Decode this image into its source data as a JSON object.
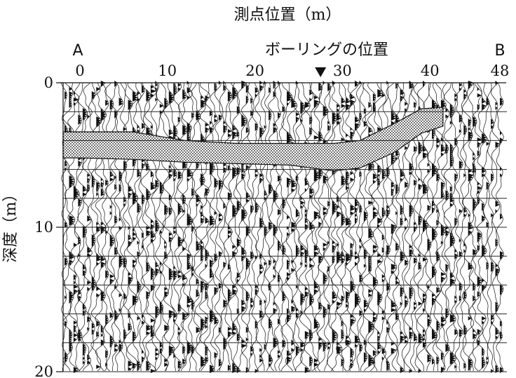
{
  "chart_data": {
    "type": "seismic-section",
    "title": "測点位置（m）",
    "ylabel": "深度（m）",
    "annotation": "ボーリングの位置",
    "end_labels": {
      "left": "A",
      "right": "B"
    },
    "x_ticks": [
      "0",
      "10",
      "20",
      "30",
      "40",
      "48"
    ],
    "x_tick_values": [
      0,
      10,
      20,
      30,
      40,
      48
    ],
    "y_ticks": [
      "0",
      "10",
      "20"
    ],
    "y_tick_values": [
      0,
      10,
      20
    ],
    "xlim": [
      0,
      48
    ],
    "ylim": [
      0,
      20
    ],
    "y_inverted": true,
    "borehole_position": 27.5,
    "shaded_reflector": [
      {
        "x": 0,
        "top": 3.4,
        "bottom": 5.2
      },
      {
        "x": 6,
        "top": 3.4,
        "bottom": 5.3
      },
      {
        "x": 12,
        "top": 4.0,
        "bottom": 5.5
      },
      {
        "x": 18,
        "top": 4.2,
        "bottom": 5.6
      },
      {
        "x": 24,
        "top": 4.2,
        "bottom": 5.7
      },
      {
        "x": 29,
        "top": 4.2,
        "bottom": 6.1
      },
      {
        "x": 32,
        "top": 4.0,
        "bottom": 5.9
      },
      {
        "x": 36,
        "top": 2.8,
        "bottom": 4.8
      },
      {
        "x": 39,
        "top": 1.8,
        "bottom": 3.5
      },
      {
        "x": 41.5,
        "top": 1.7,
        "bottom": 3.0
      }
    ],
    "colors": {
      "ink": "#111111",
      "background": "#ffffff"
    }
  }
}
